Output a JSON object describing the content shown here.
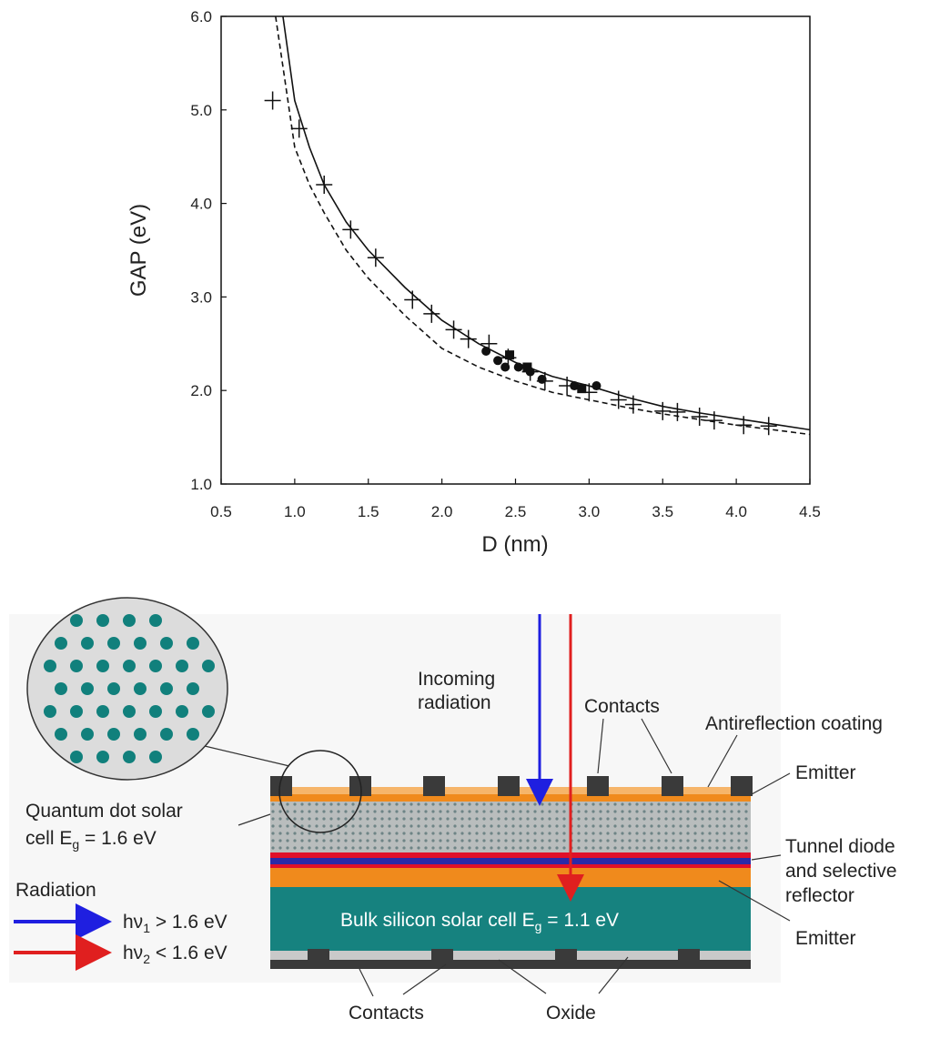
{
  "chart_data": {
    "type": "line",
    "xlabel": "D (nm)",
    "ylabel": "GAP (eV)",
    "xlim": [
      0.5,
      4.5
    ],
    "xticks": [
      0.5,
      {
        "value": 1,
        "label": "1.0"
      },
      1.5,
      {
        "value": 2,
        "label": "2.0"
      },
      2.5,
      {
        "value": 3,
        "label": "3.0"
      },
      3.5,
      {
        "value": 4,
        "label": "4.0"
      },
      4.5
    ],
    "ylim": [
      1,
      6
    ],
    "yticks": [
      {
        "value": 1,
        "label": "1.0"
      },
      {
        "value": 2,
        "label": "2.0"
      },
      {
        "value": 3,
        "label": "3.0"
      },
      {
        "value": 4,
        "label": "4.0"
      },
      {
        "value": 5,
        "label": "5.0"
      },
      {
        "value": 6,
        "label": "6.0"
      }
    ],
    "series": [
      {
        "type": "line",
        "dash": false,
        "color": "#111",
        "x": [
          0.92,
          1.0,
          1.1,
          1.2,
          1.35,
          1.5,
          1.75,
          2.0,
          2.25,
          2.5,
          2.75,
          3.0,
          3.25,
          3.5,
          3.75,
          4.0,
          4.25,
          4.5
        ],
        "values": [
          6.0,
          5.1,
          4.6,
          4.2,
          3.8,
          3.5,
          3.1,
          2.75,
          2.5,
          2.3,
          2.15,
          2.05,
          1.93,
          1.83,
          1.76,
          1.7,
          1.64,
          1.58
        ]
      },
      {
        "type": "line",
        "dash": true,
        "color": "#111",
        "x": [
          0.87,
          1.0,
          1.1,
          1.2,
          1.35,
          1.5,
          1.75,
          2.0,
          2.25,
          2.5,
          2.75,
          3.0,
          3.25,
          3.5,
          3.75,
          4.0,
          4.25,
          4.5
        ],
        "values": [
          6.0,
          4.6,
          4.2,
          3.9,
          3.5,
          3.2,
          2.8,
          2.45,
          2.25,
          2.1,
          1.98,
          1.9,
          1.82,
          1.75,
          1.69,
          1.63,
          1.58,
          1.53
        ]
      },
      {
        "type": "scatter",
        "marker": "plus",
        "color": "#111",
        "x": [
          0.85,
          1.03,
          1.2,
          1.38,
          1.55,
          1.8,
          1.93,
          2.08,
          2.18,
          2.32,
          2.45,
          2.6,
          2.7,
          2.85,
          3.0,
          3.2,
          3.3,
          3.5,
          3.6,
          3.75,
          3.85,
          4.05,
          4.22
        ],
        "values": [
          5.1,
          4.8,
          4.2,
          3.72,
          3.42,
          2.97,
          2.82,
          2.65,
          2.55,
          2.5,
          2.35,
          2.2,
          2.1,
          2.05,
          1.98,
          1.9,
          1.85,
          1.78,
          1.77,
          1.72,
          1.68,
          1.63,
          1.62
        ]
      },
      {
        "type": "scatter",
        "marker": "circle",
        "color": "#111",
        "x": [
          2.3,
          2.38,
          2.43,
          2.52,
          2.6,
          2.68,
          2.9,
          3.05
        ],
        "values": [
          2.42,
          2.32,
          2.25,
          2.25,
          2.2,
          2.12,
          2.05,
          2.05
        ]
      },
      {
        "type": "scatter",
        "marker": "square",
        "color": "#111",
        "x": [
          2.46,
          2.58,
          2.95
        ],
        "values": [
          2.38,
          2.25,
          2.02
        ]
      }
    ]
  },
  "diagram": {
    "incoming": [
      "Incoming",
      "radiation"
    ],
    "contacts_top": "Contacts",
    "antireflection": "Antireflection coating",
    "emitter_top": "Emitter",
    "qd_cell": {
      "line1": "Quantum dot solar",
      "line2": "cell E",
      "sub": "g",
      "rest": " = 1.6 eV"
    },
    "tunnel": [
      "Tunnel diode",
      "and selective",
      "reflector"
    ],
    "radiation": "Radiation",
    "hv1": {
      "pre": "hν",
      "sub": "1",
      "rest": " > 1.6 eV"
    },
    "hv2": {
      "pre": "hν",
      "sub": "2",
      "rest": " < 1.6 eV"
    },
    "bulk": {
      "pre": "Bulk silicon solar cell E",
      "sub": "g",
      "rest": " = 1.1 eV"
    },
    "emitter_bottom": "Emitter",
    "contacts_bottom": "Contacts",
    "oxide": "Oxide"
  }
}
